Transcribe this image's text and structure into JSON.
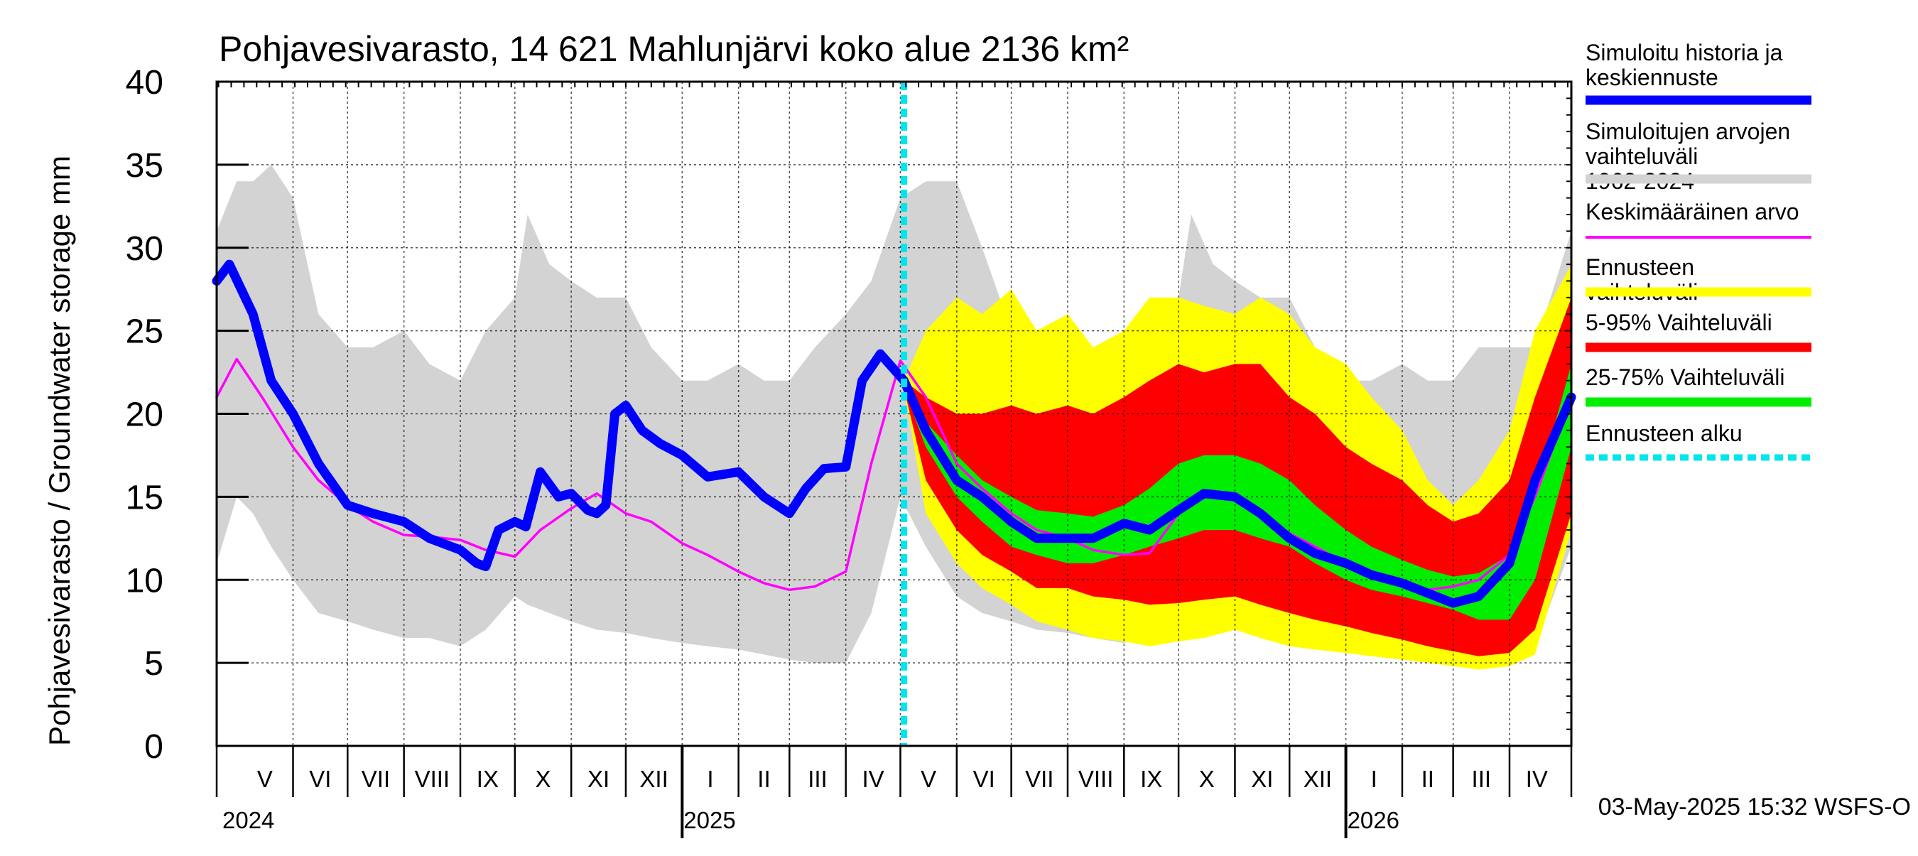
{
  "chart_data": {
    "type": "area",
    "title": "Pohjavesivarasto, 14 621 Mahlunjärvi koko alue 2136 km²",
    "ylabel": "Pohjavesivarasto / Groundwater storage   mm",
    "ylim": [
      0,
      40
    ],
    "yticks": [
      0,
      5,
      10,
      15,
      20,
      25,
      30,
      35,
      40
    ],
    "x_start": "2024-04-20",
    "x_end": "2026-05-05",
    "forecast_start": "2025-05-03",
    "grid": true,
    "legend_position": "right",
    "month_labels": [
      {
        "label": "V",
        "start": "2024-05-01",
        "end": "2024-06-01"
      },
      {
        "label": "VI",
        "start": "2024-06-01",
        "end": "2024-07-01"
      },
      {
        "label": "VII",
        "start": "2024-07-01",
        "end": "2024-08-01"
      },
      {
        "label": "VIII",
        "start": "2024-08-01",
        "end": "2024-09-01"
      },
      {
        "label": "IX",
        "start": "2024-09-01",
        "end": "2024-10-01"
      },
      {
        "label": "X",
        "start": "2024-10-01",
        "end": "2024-11-01"
      },
      {
        "label": "XI",
        "start": "2024-11-01",
        "end": "2024-12-01"
      },
      {
        "label": "XII",
        "start": "2024-12-01",
        "end": "2025-01-01"
      },
      {
        "label": "I",
        "start": "2025-01-01",
        "end": "2025-02-01"
      },
      {
        "label": "II",
        "start": "2025-02-01",
        "end": "2025-03-01"
      },
      {
        "label": "III",
        "start": "2025-03-01",
        "end": "2025-04-01"
      },
      {
        "label": "IV",
        "start": "2025-04-01",
        "end": "2025-05-01"
      },
      {
        "label": "V",
        "start": "2025-05-01",
        "end": "2025-06-01"
      },
      {
        "label": "VI",
        "start": "2025-06-01",
        "end": "2025-07-01"
      },
      {
        "label": "VII",
        "start": "2025-07-01",
        "end": "2025-08-01"
      },
      {
        "label": "VIII",
        "start": "2025-08-01",
        "end": "2025-09-01"
      },
      {
        "label": "IX",
        "start": "2025-09-01",
        "end": "2025-10-01"
      },
      {
        "label": "X",
        "start": "2025-10-01",
        "end": "2025-11-01"
      },
      {
        "label": "XI",
        "start": "2025-11-01",
        "end": "2025-12-01"
      },
      {
        "label": "XII",
        "start": "2025-12-01",
        "end": "2026-01-01"
      },
      {
        "label": "I",
        "start": "2026-01-01",
        "end": "2026-02-01"
      },
      {
        "label": "II",
        "start": "2026-02-01",
        "end": "2026-03-01"
      },
      {
        "label": "III",
        "start": "2026-03-01",
        "end": "2026-04-01"
      },
      {
        "label": "IV",
        "start": "2026-04-01",
        "end": "2026-05-01"
      }
    ],
    "year_labels": [
      {
        "label": "2024",
        "date": "2024-04-20"
      },
      {
        "label": "2025",
        "date": "2025-01-01"
      },
      {
        "label": "2026",
        "date": "2026-01-01"
      }
    ],
    "footer": "03-May-2025 15:32 WSFS-O",
    "legend": [
      {
        "label": "Simuloitu historia ja keskiennuste",
        "color": "#0000ff",
        "style": "thick"
      },
      {
        "label": "Simuloitujen arvojen vaihteluväli 1962-2024",
        "color": "#d3d3d3",
        "style": "thick"
      },
      {
        "label": "Keskimääräinen arvo",
        "color": "#ff00ff",
        "style": "thin"
      },
      {
        "label": "Ennusteen vaihteluväli",
        "color": "#ffff00",
        "style": "thick"
      },
      {
        "label": "5-95% Vaihteluväli",
        "color": "#ff0000",
        "style": "thick"
      },
      {
        "label": "25-75% Vaihteluväli",
        "color": "#00ee00",
        "style": "thick"
      },
      {
        "label": "Ennusteen alku",
        "color": "#00e5ee",
        "style": "dashed"
      }
    ],
    "series": [
      {
        "name": "Simuloitujen arvojen vaihteluväli 1962-2024",
        "kind": "band",
        "color": "#d3d3d3",
        "x": [
          "2024-04-20",
          "2024-05-01",
          "2024-05-10",
          "2024-05-20",
          "2024-06-01",
          "2024-06-15",
          "2024-07-01",
          "2024-07-15",
          "2024-08-01",
          "2024-08-15",
          "2024-09-01",
          "2024-09-15",
          "2024-10-01",
          "2024-10-08",
          "2024-10-20",
          "2024-11-01",
          "2024-11-15",
          "2024-12-01",
          "2024-12-15",
          "2025-01-01",
          "2025-01-15",
          "2025-02-01",
          "2025-02-15",
          "2025-03-01",
          "2025-03-15",
          "2025-04-01",
          "2025-04-15",
          "2025-05-01",
          "2025-05-15",
          "2025-06-01",
          "2025-06-15",
          "2025-07-01",
          "2025-07-15",
          "2025-08-01",
          "2025-08-15",
          "2025-09-01",
          "2025-09-15",
          "2025-10-01",
          "2025-10-08",
          "2025-10-20",
          "2025-11-01",
          "2025-11-15",
          "2025-12-01",
          "2025-12-15",
          "2026-01-01",
          "2026-01-15",
          "2026-02-01",
          "2026-02-15",
          "2026-03-01",
          "2026-03-15",
          "2026-04-01",
          "2026-04-15",
          "2026-05-05"
        ],
        "low": [
          11,
          15,
          14,
          12,
          10,
          8,
          7.5,
          7,
          6.5,
          6.5,
          6,
          7,
          9,
          8.5,
          8,
          7.5,
          7,
          6.8,
          6.5,
          6.2,
          6,
          5.8,
          5.5,
          5.2,
          5,
          5,
          8,
          15,
          12,
          9,
          8,
          7.5,
          7,
          6.8,
          6.5,
          6.2,
          7,
          9,
          8.5,
          8,
          7.5,
          7,
          6.8,
          6.5,
          6.2,
          6,
          5.8,
          5.5,
          5.2,
          5,
          5,
          6,
          12
        ],
        "high": [
          31,
          34,
          34,
          35,
          33,
          26,
          24,
          24,
          25,
          23,
          22,
          25,
          27,
          32,
          29,
          28,
          27,
          27,
          24,
          22,
          22,
          23,
          22,
          22,
          24,
          26,
          28,
          33,
          34,
          34,
          30,
          25,
          24,
          25,
          23,
          22,
          25,
          27,
          32,
          29,
          28,
          27,
          27,
          24,
          22,
          22,
          23,
          22,
          22,
          24,
          24,
          24,
          31
        ]
      },
      {
        "name": "Ennusteen vaihteluväli",
        "kind": "band",
        "color": "#ffff00",
        "x": [
          "2025-05-03",
          "2025-05-15",
          "2025-06-01",
          "2025-06-15",
          "2025-07-01",
          "2025-07-15",
          "2025-08-01",
          "2025-08-15",
          "2025-09-01",
          "2025-09-15",
          "2025-10-01",
          "2025-10-15",
          "2025-11-01",
          "2025-11-15",
          "2025-12-01",
          "2025-12-15",
          "2026-01-01",
          "2026-01-15",
          "2026-02-01",
          "2026-02-15",
          "2026-03-01",
          "2026-03-15",
          "2026-04-01",
          "2026-04-15",
          "2026-05-05"
        ],
        "low": [
          21.5,
          14,
          11,
          9.5,
          8.5,
          7.5,
          7,
          6.5,
          6.3,
          6,
          6.3,
          6.5,
          7,
          6.5,
          6,
          5.8,
          5.6,
          5.4,
          5.2,
          5,
          4.8,
          4.6,
          4.8,
          5.5,
          13
        ],
        "high": [
          22,
          25,
          27,
          26,
          27.5,
          25,
          26,
          24,
          25,
          27,
          27,
          26.5,
          26,
          27,
          26,
          24,
          23,
          21,
          19,
          16,
          14.5,
          16,
          19,
          25,
          29
        ]
      },
      {
        "name": "5-95% Vaihteluväli",
        "kind": "band",
        "color": "#ff0000",
        "x": [
          "2025-05-03",
          "2025-05-15",
          "2025-06-01",
          "2025-06-15",
          "2025-07-01",
          "2025-07-15",
          "2025-08-01",
          "2025-08-15",
          "2025-09-01",
          "2025-09-15",
          "2025-10-01",
          "2025-10-15",
          "2025-11-01",
          "2025-11-15",
          "2025-12-01",
          "2025-12-15",
          "2026-01-01",
          "2026-01-15",
          "2026-02-01",
          "2026-02-15",
          "2026-03-01",
          "2026-03-15",
          "2026-04-01",
          "2026-04-15",
          "2026-05-05"
        ],
        "low": [
          21.5,
          16,
          13,
          11.5,
          10.5,
          9.5,
          9.5,
          9,
          8.8,
          8.5,
          8.6,
          8.8,
          9,
          8.5,
          8,
          7.6,
          7.2,
          6.8,
          6.4,
          6,
          5.7,
          5.4,
          5.6,
          7,
          14
        ],
        "high": [
          22,
          21,
          20,
          20,
          20.5,
          20,
          20.5,
          20,
          21,
          22,
          23,
          22.5,
          23,
          23,
          21,
          20,
          18,
          17,
          16,
          14.5,
          13.5,
          14,
          16,
          21,
          27
        ]
      },
      {
        "name": "25-75% Vaihteluväli",
        "kind": "band",
        "color": "#00ee00",
        "x": [
          "2025-05-03",
          "2025-05-15",
          "2025-06-01",
          "2025-06-15",
          "2025-07-01",
          "2025-07-15",
          "2025-08-01",
          "2025-08-15",
          "2025-09-01",
          "2025-09-15",
          "2025-10-01",
          "2025-10-15",
          "2025-11-01",
          "2025-11-15",
          "2025-12-01",
          "2025-12-15",
          "2026-01-01",
          "2026-01-15",
          "2026-02-01",
          "2026-02-15",
          "2026-03-01",
          "2026-03-15",
          "2026-04-01",
          "2026-04-15",
          "2026-05-05"
        ],
        "low": [
          21.5,
          18,
          15,
          13.5,
          12,
          11.5,
          11,
          11,
          11.5,
          12,
          12.5,
          13,
          13,
          12.5,
          12,
          11,
          10,
          9.4,
          9,
          8.6,
          8.2,
          7.6,
          7.6,
          10,
          18
        ],
        "high": [
          22,
          19.5,
          17.5,
          16,
          15,
          14.2,
          14,
          13.8,
          14.5,
          15.5,
          17,
          17.5,
          17.5,
          17,
          16,
          14.5,
          13,
          12,
          11.2,
          10.6,
          10.2,
          10.4,
          11.5,
          15,
          23
        ]
      },
      {
        "name": "Keskimääräinen arvo",
        "kind": "line",
        "color": "#ff00ff",
        "x": [
          "2024-04-20",
          "2024-05-01",
          "2024-05-15",
          "2024-06-01",
          "2024-06-15",
          "2024-07-01",
          "2024-07-15",
          "2024-08-01",
          "2024-08-15",
          "2024-09-01",
          "2024-09-15",
          "2024-10-01",
          "2024-10-15",
          "2024-11-01",
          "2024-11-15",
          "2024-12-01",
          "2024-12-15",
          "2025-01-01",
          "2025-01-15",
          "2025-02-01",
          "2025-02-15",
          "2025-03-01",
          "2025-03-15",
          "2025-04-01",
          "2025-04-15",
          "2025-05-01",
          "2025-05-15",
          "2025-06-01",
          "2025-06-15",
          "2025-07-01",
          "2025-07-15",
          "2025-08-01",
          "2025-08-15",
          "2025-09-01",
          "2025-09-15",
          "2025-10-01",
          "2025-10-15",
          "2025-11-01",
          "2025-11-15",
          "2025-12-01",
          "2025-12-15",
          "2026-01-01",
          "2026-01-15",
          "2026-02-01",
          "2026-02-15",
          "2026-03-01",
          "2026-03-15",
          "2026-04-01",
          "2026-04-15",
          "2026-05-05"
        ],
        "y": [
          21,
          23.3,
          21,
          18,
          16,
          14.5,
          13.5,
          12.7,
          12.6,
          12.4,
          11.8,
          11.4,
          13,
          14.3,
          15.2,
          14,
          13.5,
          12.2,
          11.5,
          10.5,
          9.8,
          9.4,
          9.6,
          10.5,
          17,
          23.2,
          21,
          17,
          15.5,
          14,
          13,
          12.5,
          11.8,
          11.5,
          11.6,
          14,
          15.4,
          15,
          14,
          12.8,
          12,
          11,
          10.3,
          9.8,
          9.4,
          9.6,
          10,
          11.5,
          15,
          21
        ]
      },
      {
        "name": "Simuloitu historia ja keskiennuste",
        "kind": "line",
        "color": "#0000ff",
        "x": [
          "2024-04-20",
          "2024-04-27",
          "2024-05-10",
          "2024-05-20",
          "2024-06-01",
          "2024-06-15",
          "2024-07-01",
          "2024-07-15",
          "2024-08-01",
          "2024-08-15",
          "2024-09-01",
          "2024-09-10",
          "2024-09-15",
          "2024-09-22",
          "2024-10-01",
          "2024-10-07",
          "2024-10-15",
          "2024-10-25",
          "2024-11-01",
          "2024-11-10",
          "2024-11-15",
          "2024-11-20",
          "2024-11-25",
          "2024-12-01",
          "2024-12-10",
          "2024-12-20",
          "2025-01-01",
          "2025-01-15",
          "2025-02-01",
          "2025-02-15",
          "2025-03-01",
          "2025-03-10",
          "2025-03-20",
          "2025-04-01",
          "2025-04-10",
          "2025-04-20",
          "2025-05-03",
          "2025-05-15",
          "2025-06-01",
          "2025-06-15",
          "2025-07-01",
          "2025-07-15",
          "2025-08-01",
          "2025-08-15",
          "2025-09-01",
          "2025-09-15",
          "2025-10-01",
          "2025-10-15",
          "2025-11-01",
          "2025-11-15",
          "2025-12-01",
          "2025-12-15",
          "2026-01-01",
          "2026-01-15",
          "2026-02-01",
          "2026-02-15",
          "2026-03-01",
          "2026-03-15",
          "2026-04-01",
          "2026-04-15",
          "2026-05-05"
        ],
        "y": [
          28,
          29,
          26,
          22,
          20,
          17,
          14.5,
          14,
          13.5,
          12.5,
          11.8,
          11,
          10.8,
          13,
          13.5,
          13.2,
          16.5,
          15,
          15.2,
          14.2,
          14,
          14.5,
          20,
          20.5,
          19,
          18.2,
          17.5,
          16.2,
          16.5,
          15,
          14,
          15.5,
          16.7,
          16.8,
          22,
          23.6,
          22,
          19,
          16,
          15,
          13.5,
          12.5,
          12.5,
          12.5,
          13.4,
          13,
          14.2,
          15.2,
          15,
          14,
          12.5,
          11.6,
          11,
          10.3,
          9.8,
          9.2,
          8.6,
          9,
          11,
          16,
          21
        ]
      }
    ]
  }
}
